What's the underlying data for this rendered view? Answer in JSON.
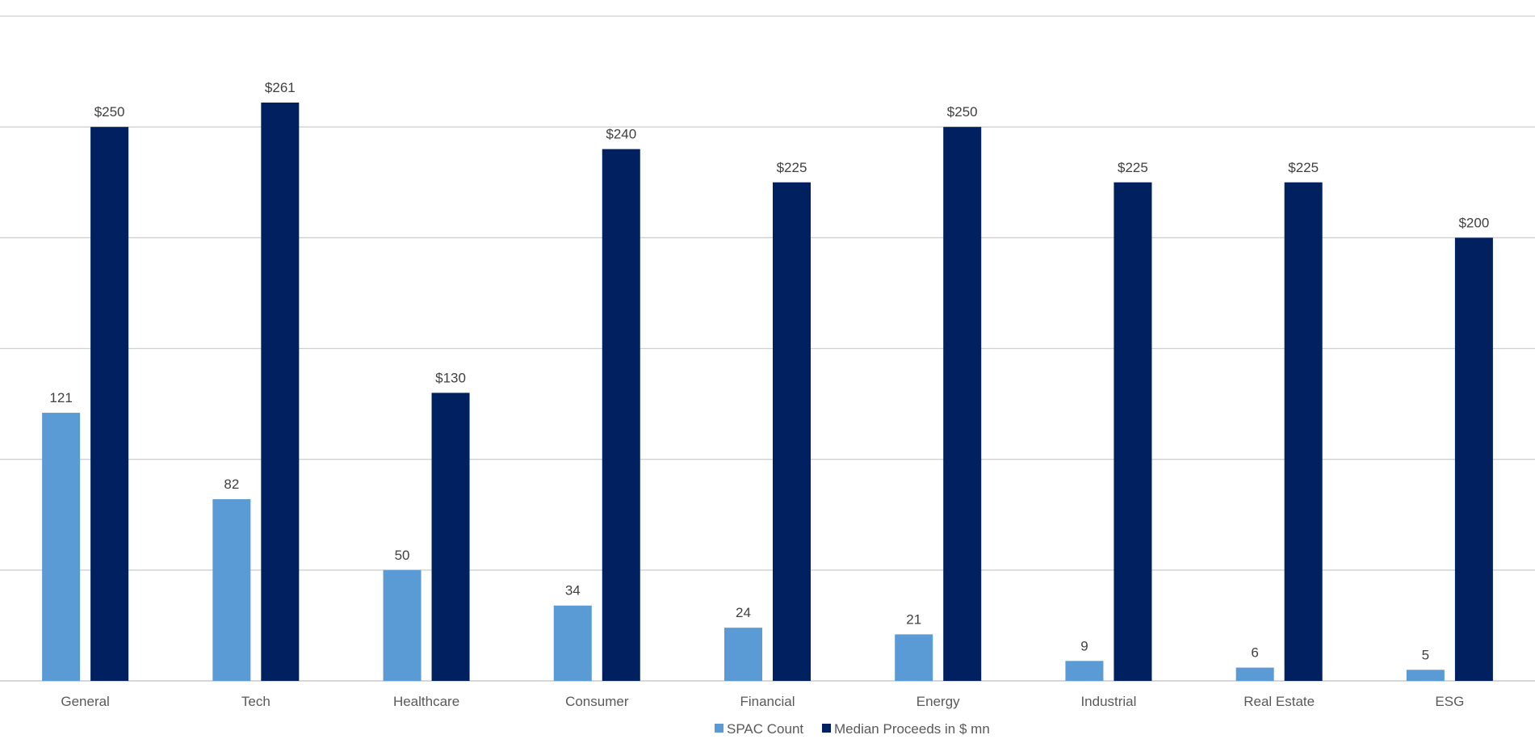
{
  "chart_data": {
    "type": "bar",
    "categories": [
      "General",
      "Tech",
      "Healthcare",
      "Consumer",
      "Financial",
      "Energy",
      "Industrial",
      "Real Estate",
      "ESG"
    ],
    "series": [
      {
        "name": "SPAC Count",
        "values": [
          121,
          82,
          50,
          34,
          24,
          21,
          9,
          6,
          5
        ],
        "labels": [
          "121",
          "82",
          "50",
          "34",
          "24",
          "21",
          "9",
          "6",
          "5"
        ],
        "color": "#5B9BD5"
      },
      {
        "name": "Median Proceeds in $ mn",
        "values": [
          250,
          261,
          130,
          240,
          225,
          250,
          225,
          225,
          200
        ],
        "labels": [
          "$250",
          "$261",
          "$130",
          "$240",
          "$225",
          "$250",
          "$225",
          "$225",
          "$200"
        ],
        "color": "#002060"
      }
    ],
    "ylim": [
      0,
      300
    ],
    "grid": true,
    "legend_position": "bottom",
    "gridline_color": "#d0d0d0"
  }
}
